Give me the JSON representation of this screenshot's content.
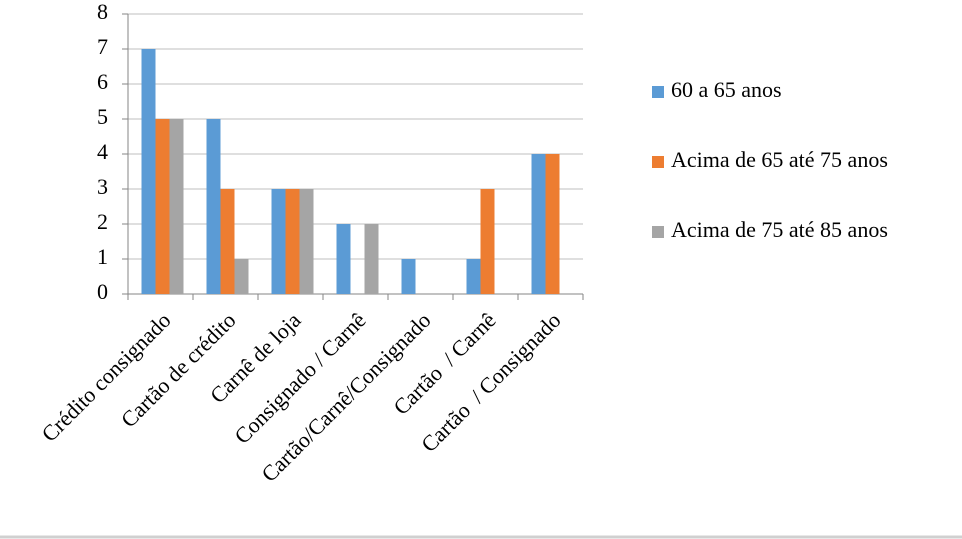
{
  "chart_data": {
    "type": "bar",
    "categories": [
      "Crédito consignado",
      "Cartão de crédito",
      "Carnê de loja",
      "Consignado / Carnê",
      "Cartão/Carnê/Consignado",
      "Cartão  / Carnê",
      "Cartão  / Consignado"
    ],
    "series": [
      {
        "name": "60 a 65 anos",
        "color": "#5b9bd5",
        "values": [
          7,
          5,
          3,
          2,
          1,
          1,
          4
        ]
      },
      {
        "name": "Acima de 65 até 75 anos",
        "color": "#ed7d31",
        "values": [
          5,
          3,
          3,
          0,
          0,
          3,
          4
        ]
      },
      {
        "name": "Acima de 75 até 85 anos",
        "color": "#a5a5a5",
        "values": [
          5,
          1,
          3,
          2,
          0,
          0,
          0
        ]
      }
    ],
    "ylim": [
      0,
      8
    ],
    "yticks": [
      0,
      1,
      2,
      3,
      4,
      5,
      6,
      7,
      8
    ],
    "grid": true,
    "legend": "right"
  }
}
